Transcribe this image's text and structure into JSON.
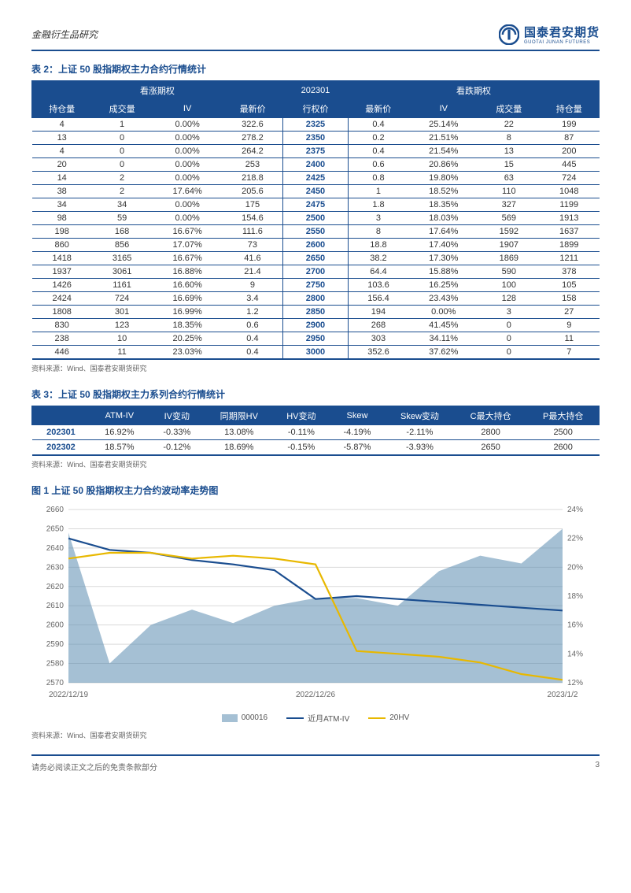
{
  "header": {
    "category": "金融衍生品研究",
    "logo_cn": "国泰君安期货",
    "logo_en": "GUOTAI JUNAN FUTURES"
  },
  "table2": {
    "title": "表 2：上证 50 股指期权主力合约行情统计",
    "group_left": "看涨期权",
    "group_mid": "202301",
    "group_right": "看跌期权",
    "cols_left": [
      "持仓量",
      "成交量",
      "IV",
      "最新价"
    ],
    "col_mid": "行权价",
    "cols_right": [
      "最新价",
      "IV",
      "成交量",
      "持仓量"
    ],
    "rows": [
      [
        "4",
        "1",
        "0.00%",
        "322.6",
        "2325",
        "0.4",
        "25.14%",
        "22",
        "199"
      ],
      [
        "13",
        "0",
        "0.00%",
        "278.2",
        "2350",
        "0.2",
        "21.51%",
        "8",
        "87"
      ],
      [
        "4",
        "0",
        "0.00%",
        "264.2",
        "2375",
        "0.4",
        "21.54%",
        "13",
        "200"
      ],
      [
        "20",
        "0",
        "0.00%",
        "253",
        "2400",
        "0.6",
        "20.86%",
        "15",
        "445"
      ],
      [
        "14",
        "2",
        "0.00%",
        "218.8",
        "2425",
        "0.8",
        "19.80%",
        "63",
        "724"
      ],
      [
        "38",
        "2",
        "17.64%",
        "205.6",
        "2450",
        "1",
        "18.52%",
        "110",
        "1048"
      ],
      [
        "34",
        "34",
        "0.00%",
        "175",
        "2475",
        "1.8",
        "18.35%",
        "327",
        "1199"
      ],
      [
        "98",
        "59",
        "0.00%",
        "154.6",
        "2500",
        "3",
        "18.03%",
        "569",
        "1913"
      ],
      [
        "198",
        "168",
        "16.67%",
        "111.6",
        "2550",
        "8",
        "17.64%",
        "1592",
        "1637"
      ],
      [
        "860",
        "856",
        "17.07%",
        "73",
        "2600",
        "18.8",
        "17.40%",
        "1907",
        "1899"
      ],
      [
        "1418",
        "3165",
        "16.67%",
        "41.6",
        "2650",
        "38.2",
        "17.30%",
        "1869",
        "1211"
      ],
      [
        "1937",
        "3061",
        "16.88%",
        "21.4",
        "2700",
        "64.4",
        "15.88%",
        "590",
        "378"
      ],
      [
        "1426",
        "1161",
        "16.60%",
        "9",
        "2750",
        "103.6",
        "16.25%",
        "100",
        "105"
      ],
      [
        "2424",
        "724",
        "16.69%",
        "3.4",
        "2800",
        "156.4",
        "23.43%",
        "128",
        "158"
      ],
      [
        "1808",
        "301",
        "16.99%",
        "1.2",
        "2850",
        "194",
        "0.00%",
        "3",
        "27"
      ],
      [
        "830",
        "123",
        "18.35%",
        "0.6",
        "2900",
        "268",
        "41.45%",
        "0",
        "9"
      ],
      [
        "238",
        "10",
        "20.25%",
        "0.4",
        "2950",
        "303",
        "34.11%",
        "0",
        "11"
      ],
      [
        "446",
        "11",
        "23.03%",
        "0.4",
        "3000",
        "352.6",
        "37.62%",
        "0",
        "7"
      ]
    ],
    "source": "资料来源：Wind、国泰君安期货研究"
  },
  "table3": {
    "title": "表 3：上证 50 股指期权主力系列合约行情统计",
    "cols": [
      "",
      "ATM-IV",
      "IV变动",
      "同期限HV",
      "HV变动",
      "Skew",
      "Skew变动",
      "C最大持仓",
      "P最大持仓"
    ],
    "rows": [
      [
        "202301",
        "16.92%",
        "-0.33%",
        "13.08%",
        "-0.11%",
        "-4.19%",
        "-2.11%",
        "2800",
        "2500"
      ],
      [
        "202302",
        "18.57%",
        "-0.12%",
        "18.69%",
        "-0.15%",
        "-5.87%",
        "-3.93%",
        "2650",
        "2600"
      ]
    ],
    "source": "资料来源：Wind、国泰君安期货研究"
  },
  "chart1": {
    "title": "图 1 上证 50 股指期权主力合约波动率走势图",
    "type": "line+area",
    "left_axis": {
      "min": 2570,
      "max": 2660,
      "step": 10
    },
    "right_axis": {
      "min": 12,
      "max": 24,
      "step": 2,
      "suffix": "%"
    },
    "x_labels": [
      "2022/12/19",
      "2022/12/26",
      "2023/1/2"
    ],
    "x_count": 13,
    "series": {
      "area_000016": {
        "label": "000016",
        "color": "#5b8db0",
        "opacity": 0.55,
        "values": [
          2648,
          2580,
          2600,
          2608,
          2601,
          2610,
          2614,
          2614,
          2610,
          2628,
          2636,
          2632,
          2650
        ]
      },
      "atm_iv": {
        "label": "近月ATM-IV",
        "color": "#1a4d8f",
        "width": 2.2,
        "values_pct": [
          22.0,
          21.2,
          21.0,
          20.5,
          20.2,
          19.8,
          17.8,
          18.0,
          17.8,
          17.6,
          17.4,
          17.2,
          17.0
        ]
      },
      "hv20": {
        "label": "20HV",
        "color": "#e8b800",
        "width": 2.2,
        "values_pct": [
          20.6,
          21.0,
          21.0,
          20.6,
          20.8,
          20.6,
          20.2,
          14.2,
          14.0,
          13.8,
          13.4,
          12.6,
          12.2
        ]
      }
    },
    "background": "#ffffff",
    "grid_color": "#d9d9d9",
    "source": "资料来源：Wind、国泰君安期货研究"
  },
  "footer": {
    "disclaimer": "请务必阅读正文之后的免责条款部分",
    "page_no": "3"
  }
}
